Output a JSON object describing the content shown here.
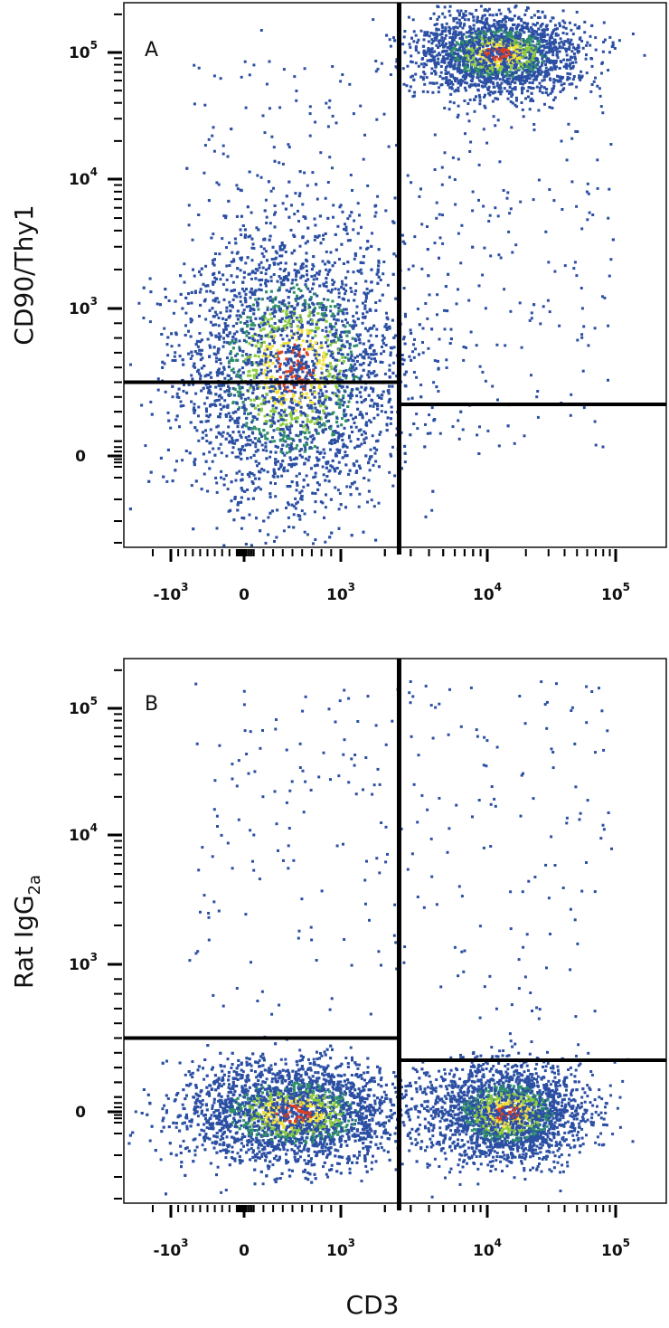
{
  "chart_data": [
    {
      "type": "scatter",
      "panel_label": "A",
      "ylabel": "CD90/Thy1",
      "xlabel": "",
      "x_scale": "biexponential",
      "y_scale": "biexponential",
      "x_ticks": [
        {
          "label": "-10",
          "sup": "3",
          "value": -1000
        },
        {
          "label": "0",
          "sup": "",
          "value": 0
        },
        {
          "label": "10",
          "sup": "3",
          "value": 1000
        },
        {
          "label": "10",
          "sup": "4",
          "value": 10000
        },
        {
          "label": "10",
          "sup": "5",
          "value": 100000
        }
      ],
      "y_ticks": [
        {
          "label": "0",
          "sup": "",
          "value": 0
        },
        {
          "label": "10",
          "sup": "3",
          "value": 1000
        },
        {
          "label": "10",
          "sup": "4",
          "value": 10000
        },
        {
          "label": "10",
          "sup": "5",
          "value": 100000
        }
      ],
      "quadrant_gate": {
        "x": 2500,
        "y_left": 500,
        "y_right": 350
      },
      "populations": [
        {
          "x_center": 500,
          "y_center": 600,
          "x_spread": 450,
          "y_spread": 800,
          "count": 4200
        },
        {
          "x_center": 12000,
          "y_center": 100000,
          "x_spread": 6000,
          "y_spread": 35000,
          "count": 2400
        }
      ],
      "density_colors": [
        "#2b4fa3",
        "#2e8f6a",
        "#8ccc3f",
        "#f2e23a",
        "#e0401f"
      ]
    },
    {
      "type": "scatter",
      "panel_label": "B",
      "ylabel": "Rat IgG",
      "ylabel_sub": "2a",
      "xlabel": "CD3",
      "x_scale": "biexponential",
      "y_scale": "biexponential",
      "x_ticks": [
        {
          "label": "-10",
          "sup": "3",
          "value": -1000
        },
        {
          "label": "0",
          "sup": "",
          "value": 0
        },
        {
          "label": "10",
          "sup": "3",
          "value": 1000
        },
        {
          "label": "10",
          "sup": "4",
          "value": 10000
        },
        {
          "label": "10",
          "sup": "5",
          "value": 100000
        }
      ],
      "y_ticks": [
        {
          "label": "0",
          "sup": "",
          "value": 0
        },
        {
          "label": "10",
          "sup": "3",
          "value": 1000
        },
        {
          "label": "10",
          "sup": "4",
          "value": 10000
        },
        {
          "label": "10",
          "sup": "5",
          "value": 100000
        }
      ],
      "quadrant_gate": {
        "x": 2500,
        "y_left": 500,
        "y_right": 350
      },
      "populations": [
        {
          "x_center": 500,
          "y_center": 0,
          "x_spread": 450,
          "y_spread": 60,
          "count": 4200
        },
        {
          "x_center": 14000,
          "y_center": 0,
          "x_spread": 8000,
          "y_spread": 60,
          "count": 2400
        }
      ],
      "density_colors": [
        "#2b4fa3",
        "#2e8f6a",
        "#8ccc3f",
        "#f2e23a",
        "#e0401f"
      ]
    }
  ]
}
